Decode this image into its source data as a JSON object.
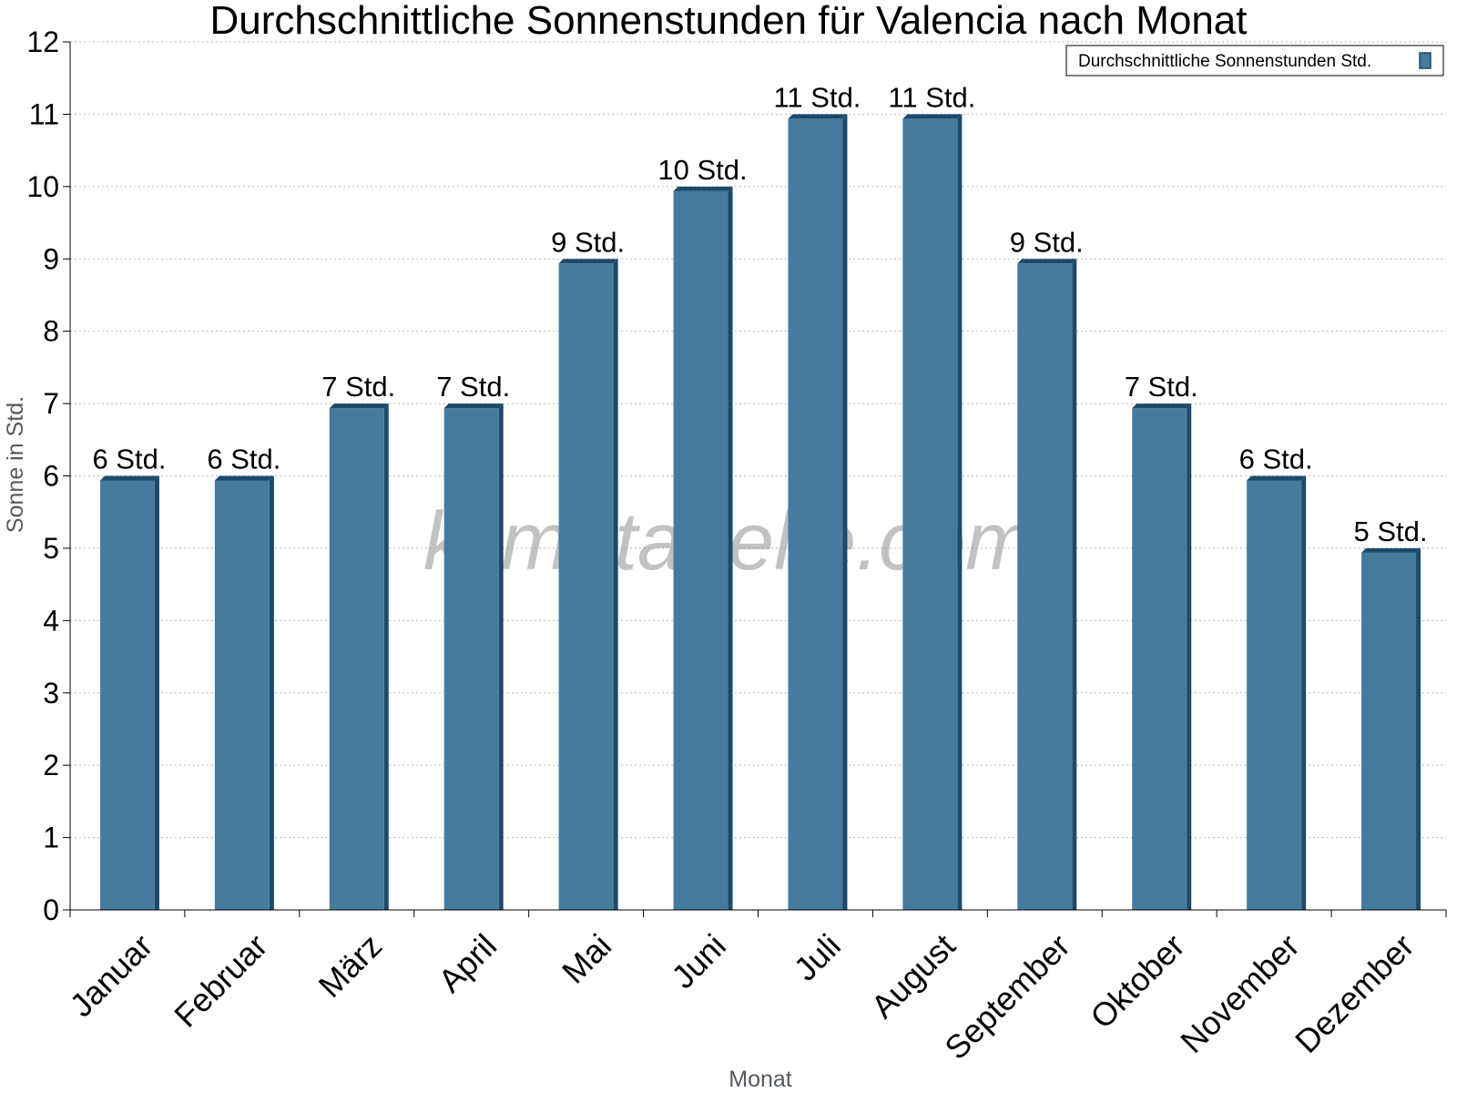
{
  "chart_data": {
    "type": "bar",
    "title": "Durchschnittliche Sonnenstunden für Valencia nach Monat",
    "xlabel": "Monat",
    "ylabel": "Sonne in Std.",
    "ylim": [
      0,
      12
    ],
    "yticks": [
      "0",
      "1",
      "2",
      "3",
      "4",
      "5",
      "6",
      "7",
      "8",
      "9",
      "10",
      "11",
      "12"
    ],
    "grid": true,
    "legend_position": "top-right",
    "categories": [
      "Januar",
      "Februar",
      "März",
      "April",
      "Mai",
      "Juni",
      "Juli",
      "August",
      "September",
      "Oktober",
      "November",
      "Dezember"
    ],
    "series": [
      {
        "name": "Durchschnittliche Sonnenstunden Std.",
        "values": [
          6,
          6,
          7,
          7,
          9,
          10,
          11,
          11,
          9,
          7,
          6,
          5
        ],
        "labels": [
          "6 Std.",
          "6 Std.",
          "7 Std.",
          "7 Std.",
          "9 Std.",
          "10 Std.",
          "11 Std.",
          "11 Std.",
          "9 Std.",
          "7 Std.",
          "6 Std.",
          "5 Std."
        ],
        "color": "#457b9d",
        "shadow_color": "#1d4a6b"
      }
    ],
    "watermark": "klimatabelle.com"
  }
}
